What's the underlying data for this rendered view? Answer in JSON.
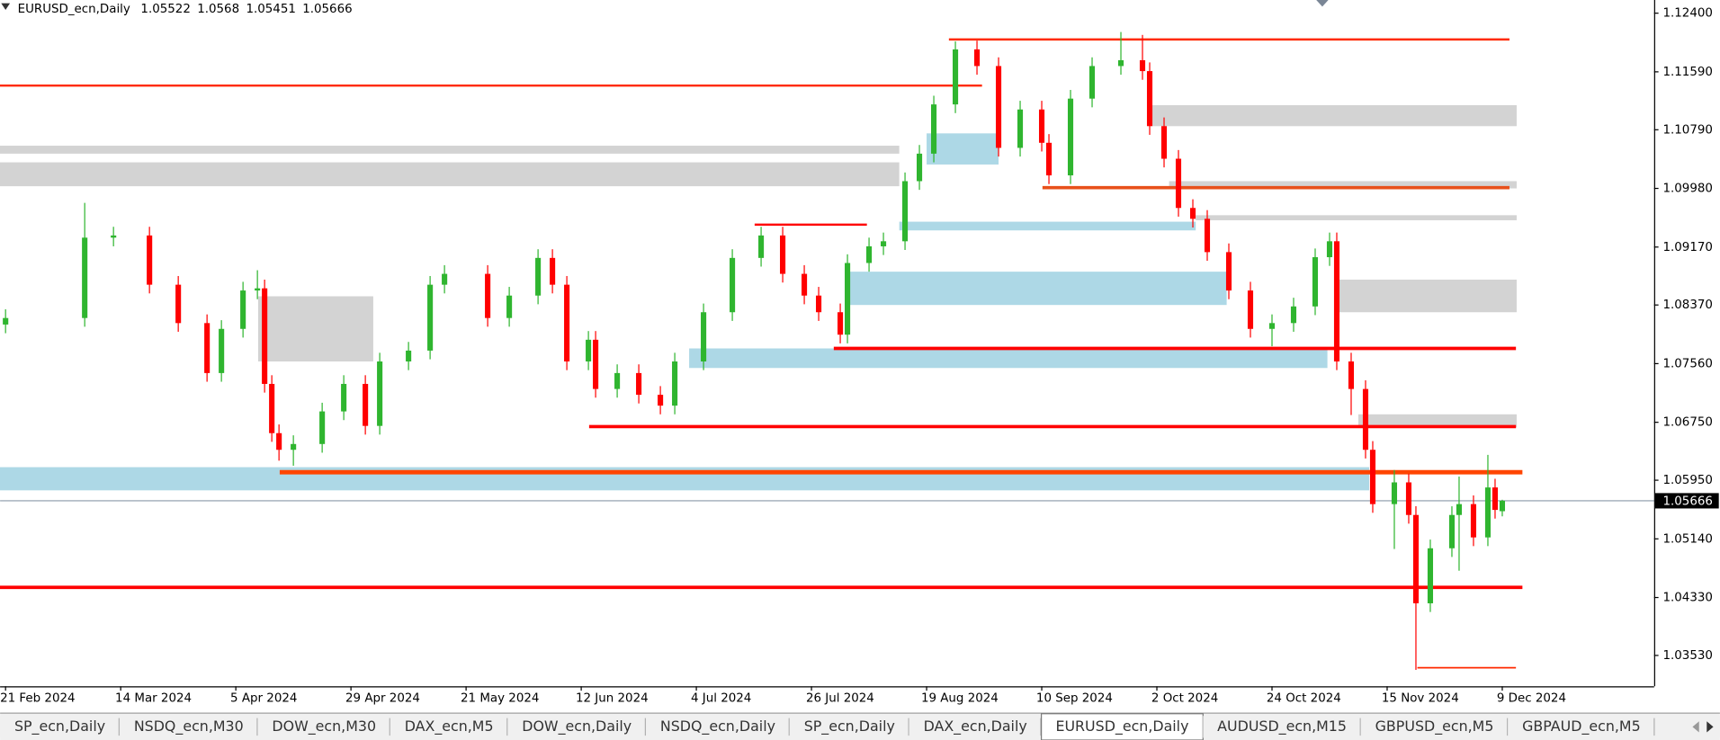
{
  "header": {
    "symbol": "EURUSD_ecn,Daily"
  },
  "chart_data": {
    "type": "candlestick",
    "x": [
      0,
      11,
      15,
      20,
      24,
      28,
      30,
      33,
      35,
      36,
      37,
      38,
      40,
      44,
      47,
      50,
      52,
      56,
      59,
      61,
      67,
      70,
      74,
      76,
      78,
      81,
      82,
      85,
      88,
      91,
      93,
      97,
      101,
      105,
      108,
      111,
      113,
      116,
      117,
      120,
      122,
      125,
      127,
      129,
      132,
      135,
      138,
      141,
      144,
      145,
      148,
      151,
      155,
      158,
      159,
      161,
      163,
      165,
      167,
      170,
      173,
      176,
      179,
      182,
      184,
      185,
      187,
      189,
      190,
      193,
      195,
      196,
      198,
      201,
      202,
      204,
      206,
      207,
      208
    ],
    "open": [
      1.081,
      1.0819,
      1.093,
      1.0933,
      1.0865,
      1.0812,
      1.0743,
      1.0804,
      1.0857,
      1.086,
      1.0728,
      1.066,
      1.0637,
      1.0645,
      1.069,
      1.0728,
      1.067,
      1.0759,
      1.0774,
      1.0865,
      1.088,
      1.0819,
      1.085,
      1.0902,
      1.0865,
      1.0759,
      1.0789,
      1.0721,
      1.0743,
      1.0713,
      1.0698,
      1.0759,
      1.0827,
      1.0902,
      1.0933,
      1.088,
      1.085,
      1.0827,
      1.0796,
      1.0895,
      1.0918,
      1.0925,
      1.1008,
      1.1046,
      1.1114,
      1.119,
      1.1167,
      1.1054,
      1.1107,
      1.1061,
      1.1016,
      1.1122,
      1.1167,
      1.1175,
      1.116,
      1.1084,
      1.1039,
      1.0971,
      1.0956,
      1.091,
      1.0857,
      1.0804,
      1.0812,
      1.0835,
      1.0903,
      1.0925,
      1.0759,
      1.0721,
      1.0637,
      1.0562,
      1.0592,
      1.0547,
      1.0425,
      1.0501,
      1.0547,
      1.0562,
      1.0516,
      1.0585,
      1.05522
    ],
    "high": [
      1.0831,
      1.0978,
      1.0945,
      1.0945,
      1.0877,
      1.0824,
      1.0816,
      1.0869,
      1.0885,
      1.0872,
      1.074,
      1.0672,
      1.0657,
      1.0702,
      1.074,
      1.074,
      1.0771,
      1.0786,
      1.0877,
      1.0892,
      1.0892,
      1.0862,
      1.0914,
      1.0914,
      1.0877,
      1.0801,
      1.0801,
      1.0755,
      1.0755,
      1.0725,
      1.0771,
      1.0839,
      1.0914,
      1.0945,
      1.0945,
      1.0892,
      1.0862,
      1.0839,
      1.0907,
      1.093,
      1.0937,
      1.102,
      1.1058,
      1.1126,
      1.1201,
      1.1202,
      1.1179,
      1.1119,
      1.1119,
      1.1073,
      1.1134,
      1.1179,
      1.1214,
      1.121,
      1.1172,
      1.1096,
      1.1051,
      1.0983,
      1.0968,
      1.0922,
      1.0869,
      1.0824,
      1.0847,
      1.0915,
      1.0937,
      1.0937,
      1.0771,
      1.0733,
      1.0649,
      1.0609,
      1.0604,
      1.0559,
      1.0513,
      1.0559,
      1.06,
      1.0574,
      1.063,
      1.0597,
      1.0568
    ],
    "low": [
      1.0798,
      1.0807,
      1.0918,
      1.0853,
      1.08,
      1.0731,
      1.0731,
      1.0792,
      1.0845,
      1.0716,
      1.0648,
      1.0622,
      1.0615,
      1.0633,
      1.0678,
      1.0658,
      1.0658,
      1.0747,
      1.0762,
      1.0853,
      1.0807,
      1.0807,
      1.0838,
      1.0853,
      1.0747,
      1.0747,
      1.0709,
      1.0709,
      1.0701,
      1.0686,
      1.0686,
      1.0747,
      1.0815,
      1.089,
      1.0868,
      1.0838,
      1.0815,
      1.0784,
      1.0784,
      1.0883,
      1.0906,
      1.0913,
      1.0996,
      1.1034,
      1.1102,
      1.1155,
      1.1042,
      1.1042,
      1.1049,
      1.1004,
      1.1004,
      1.111,
      1.1155,
      1.1148,
      1.1072,
      1.1027,
      1.0959,
      1.0944,
      1.0898,
      1.0845,
      1.0792,
      1.078,
      1.08,
      1.0823,
      1.0891,
      1.0747,
      1.0685,
      1.0625,
      1.055,
      1.05,
      1.0535,
      1.0333,
      1.0413,
      1.0489,
      1.047,
      1.0504,
      1.0504,
      1.0542,
      1.05451
    ],
    "close": [
      1.0819,
      1.093,
      1.0933,
      1.0865,
      1.0812,
      1.0743,
      1.0804,
      1.0857,
      1.086,
      1.0728,
      1.066,
      1.0637,
      1.0645,
      1.069,
      1.0728,
      1.067,
      1.0759,
      1.0774,
      1.0865,
      1.088,
      1.0819,
      1.085,
      1.0902,
      1.0865,
      1.0759,
      1.0789,
      1.0721,
      1.0743,
      1.0713,
      1.0698,
      1.0759,
      1.0827,
      1.0902,
      1.0933,
      1.088,
      1.085,
      1.0827,
      1.0796,
      1.0895,
      1.0918,
      1.0925,
      1.1008,
      1.1046,
      1.1114,
      1.119,
      1.1167,
      1.1054,
      1.1107,
      1.1061,
      1.1016,
      1.1122,
      1.1167,
      1.1175,
      1.116,
      1.1084,
      1.1039,
      1.0971,
      1.0956,
      1.091,
      1.0857,
      1.0804,
      1.0812,
      1.0835,
      1.0903,
      1.0925,
      1.0759,
      1.0721,
      1.0637,
      1.0562,
      1.0592,
      1.0547,
      1.0425,
      1.0501,
      1.0547,
      1.0562,
      1.0516,
      1.0585,
      1.0554,
      1.05666
    ],
    "colors": {
      "up": "#2fb52f",
      "down": "#ff0000"
    },
    "xlim": [
      -0.76,
      229.1
    ],
    "ylim": [
      1.03104,
      1.12582
    ],
    "yticks": [
      {
        "value": 1.124,
        "label": "1.12400"
      },
      {
        "value": 1.1159,
        "label": "1.11590"
      },
      {
        "value": 1.1079,
        "label": "1.10790"
      },
      {
        "value": 1.0998,
        "label": "1.09980"
      },
      {
        "value": 1.0917,
        "label": "1.09170"
      },
      {
        "value": 1.0837,
        "label": "1.08370"
      },
      {
        "value": 1.0756,
        "label": "1.07560"
      },
      {
        "value": 1.0675,
        "label": "1.06750"
      },
      {
        "value": 1.0595,
        "label": "1.05950"
      },
      {
        "value": 1.0514,
        "label": "1.05140"
      },
      {
        "value": 1.0433,
        "label": "1.04330"
      },
      {
        "value": 1.0353,
        "label": "1.03530"
      }
    ],
    "xticks": [
      {
        "value": 0,
        "label": "21 Feb 2024"
      },
      {
        "value": 16,
        "label": "14 Mar 2024"
      },
      {
        "value": 32,
        "label": "5 Apr 2024"
      },
      {
        "value": 48,
        "label": "29 Apr 2024"
      },
      {
        "value": 64,
        "label": "21 May 2024"
      },
      {
        "value": 80,
        "label": "12 Jun 2024"
      },
      {
        "value": 96,
        "label": "4 Jul 2024"
      },
      {
        "value": 112,
        "label": "26 Jul 2024"
      },
      {
        "value": 128,
        "label": "19 Aug 2024"
      },
      {
        "value": 144,
        "label": "10 Sep 2024"
      },
      {
        "value": 160,
        "label": "2 Oct 2024"
      },
      {
        "value": 176,
        "label": "24 Oct 2024"
      },
      {
        "value": 192,
        "label": "15 Nov 2024"
      },
      {
        "value": 208,
        "label": "9 Dec 2024"
      }
    ],
    "zones": [
      {
        "top": 1.1057,
        "bottom": 1.1046,
        "from": -0.8,
        "to": 124.2,
        "color": "#d3d3d3"
      },
      {
        "top": 1.1034,
        "bottom": 1.1001,
        "from": -0.8,
        "to": 124.2,
        "color": "#d3d3d3"
      },
      {
        "top": 1.1113,
        "bottom": 1.1084,
        "from": 159.0,
        "to": 210,
        "color": "#d3d3d3"
      },
      {
        "top": 1.1008,
        "bottom": 1.0998,
        "from": 161.7,
        "to": 210,
        "color": "#d3d3d3"
      },
      {
        "top": 1.0961,
        "bottom": 1.0954,
        "from": 165.4,
        "to": 210,
        "color": "#d3d3d3"
      },
      {
        "top": 1.0872,
        "bottom": 1.0827,
        "from": 184.9,
        "to": 210,
        "color": "#d3d3d3"
      },
      {
        "top": 1.0686,
        "bottom": 1.0668,
        "from": 188,
        "to": 210,
        "color": "#d3d3d3"
      },
      {
        "top": 1.0849,
        "bottom": 1.0759,
        "from": 35.1,
        "to": 51.1,
        "color": "#d3d3d3"
      },
      {
        "top": 1.0613,
        "bottom": 1.0581,
        "from": -0.8,
        "to": 189.5,
        "color": "#add8e6"
      },
      {
        "top": 1.0883,
        "bottom": 1.0837,
        "from": 117.1,
        "to": 169.7,
        "color": "#add8e6"
      },
      {
        "top": 1.0777,
        "bottom": 1.075,
        "from": 95,
        "to": 183.7,
        "color": "#add8e6"
      },
      {
        "top": 1.0952,
        "bottom": 1.094,
        "from": 124.2,
        "to": 165.4,
        "color": "#add8e6"
      },
      {
        "top": 1.1074,
        "bottom": 1.1031,
        "from": 128.0,
        "to": 138,
        "color": "#add8e6"
      }
    ],
    "levels": [
      {
        "price": 1.12037,
        "from": 131.1,
        "to": 209.0,
        "color": "#ff2a00",
        "width": 2
      },
      {
        "price": 1.114,
        "from": -0.8,
        "to": 135.7,
        "color": "#ff2a00",
        "width": 2
      },
      {
        "price": 1.0999,
        "from": 144.1,
        "to": 209.0,
        "color": "#e8501a",
        "width": 3
      },
      {
        "price": 1.0948,
        "from": 104.1,
        "to": 119.7,
        "color": "#ff0000",
        "width": 2
      },
      {
        "price": 1.0777,
        "from": 115.1,
        "to": 209.9,
        "color": "#ff0000",
        "width": 3
      },
      {
        "price": 1.0669,
        "from": 81.1,
        "to": 209.9,
        "color": "#ff0000",
        "width": 3
      },
      {
        "price": 1.0606,
        "from": 38.1,
        "to": 210.8,
        "color": "#ff4500",
        "width": 4
      },
      {
        "price": 1.0447,
        "from": -0.8,
        "to": 210.8,
        "color": "#ff0000",
        "width": 3
      },
      {
        "price": 1.0336,
        "from": 196.2,
        "to": 209.9,
        "color": "#ff2a00",
        "width": 1.5
      }
    ]
  },
  "tabs": {
    "items": [
      "SP_ecn,Daily",
      "NSDQ_ecn,M30",
      "DOW_ecn,M30",
      "DAX_ecn,M5",
      "DOW_ecn,Daily",
      "NSDQ_ecn,Daily",
      "SP_ecn,Daily",
      "DAX_ecn,Daily",
      "EURUSD_ecn,Daily",
      "AUDUSD_ecn,M15",
      "GBPUSD_ecn,M5",
      "GBPAUD_ecn,M5"
    ],
    "active": 8
  }
}
